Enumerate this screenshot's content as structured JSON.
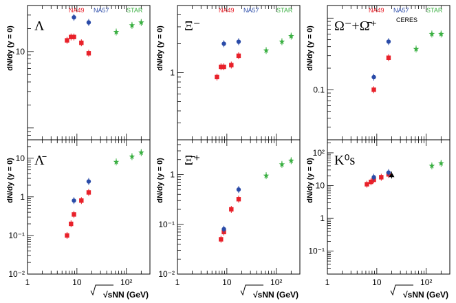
{
  "chart_data": [
    {
      "type": "scatter",
      "panel_label": "Λ",
      "ylabel": "dN/dy (y = 0)",
      "xscale": "log",
      "yscale": "log",
      "xlim": [
        1,
        300
      ],
      "ylim": [
        0.7,
        40
      ],
      "yticks": [
        {
          "v": 10,
          "label": "10"
        }
      ],
      "legend": [
        {
          "name": "NA49",
          "color": "#e8212a"
        },
        {
          "name": "NA57",
          "color": "#2a4ba8"
        },
        {
          "name": "STAR",
          "color": "#3bb043"
        }
      ],
      "series": [
        {
          "name": "NA49",
          "marker": "square",
          "color": "#e8212a",
          "points": [
            {
              "x": 6.3,
              "y": 14
            },
            {
              "x": 7.6,
              "y": 15.5
            },
            {
              "x": 8.7,
              "y": 15.5
            },
            {
              "x": 12.3,
              "y": 13
            },
            {
              "x": 17.3,
              "y": 9.5
            }
          ]
        },
        {
          "name": "NA57",
          "marker": "circle",
          "color": "#2a4ba8",
          "points": [
            {
              "x": 8.7,
              "y": 28
            },
            {
              "x": 17.3,
              "y": 24
            }
          ]
        },
        {
          "name": "STAR",
          "marker": "star",
          "color": "#3bb043",
          "points": [
            {
              "x": 62.4,
              "y": 18
            },
            {
              "x": 130,
              "y": 22
            },
            {
              "x": 200,
              "y": 24
            }
          ]
        }
      ]
    },
    {
      "type": "scatter",
      "panel_label": "Ξ⁻",
      "ylabel": "dN/dy (y = 0)",
      "xscale": "log",
      "yscale": "log",
      "xlim": [
        1,
        300
      ],
      "ylim": [
        0.2,
        5
      ],
      "yticks": [
        {
          "v": 1,
          "label": "1"
        }
      ],
      "legend": [
        {
          "name": "NA49",
          "color": "#e8212a"
        },
        {
          "name": "NA57",
          "color": "#2a4ba8"
        },
        {
          "name": "STAR",
          "color": "#3bb043"
        }
      ],
      "series": [
        {
          "name": "NA49",
          "marker": "square",
          "color": "#e8212a",
          "points": [
            {
              "x": 6.3,
              "y": 0.9
            },
            {
              "x": 7.6,
              "y": 1.15
            },
            {
              "x": 8.7,
              "y": 1.15
            },
            {
              "x": 12.3,
              "y": 1.2
            },
            {
              "x": 17.3,
              "y": 1.5
            }
          ]
        },
        {
          "name": "NA57",
          "marker": "circle",
          "color": "#2a4ba8",
          "points": [
            {
              "x": 8.7,
              "y": 2.0
            },
            {
              "x": 17.3,
              "y": 2.1
            }
          ]
        },
        {
          "name": "STAR",
          "marker": "star",
          "color": "#3bb043",
          "points": [
            {
              "x": 62.4,
              "y": 1.7
            },
            {
              "x": 130,
              "y": 2.1
            },
            {
              "x": 200,
              "y": 2.4
            }
          ]
        }
      ]
    },
    {
      "type": "scatter",
      "panel_label": "Ω⁻+Ω̄⁺",
      "ylabel": "dN/dy (y = 0)",
      "xscale": "log",
      "yscale": "log",
      "xlim": [
        1,
        300
      ],
      "ylim": [
        0.02,
        1.5
      ],
      "yticks": [
        {
          "v": 0.1,
          "label": "0.1"
        }
      ],
      "legend": [
        {
          "name": "NA49",
          "color": "#e8212a"
        },
        {
          "name": "NA57",
          "color": "#2a4ba8"
        },
        {
          "name": "STAR",
          "color": "#3bb043"
        },
        {
          "name": "CERES",
          "color": "#000000"
        }
      ],
      "series": [
        {
          "name": "NA49",
          "marker": "square",
          "color": "#e8212a",
          "points": [
            {
              "x": 8.7,
              "y": 0.1
            },
            {
              "x": 17.3,
              "y": 0.28
            }
          ]
        },
        {
          "name": "NA57",
          "marker": "circle",
          "color": "#2a4ba8",
          "points": [
            {
              "x": 8.7,
              "y": 0.15
            },
            {
              "x": 17.3,
              "y": 0.47
            }
          ]
        },
        {
          "name": "STAR",
          "marker": "star",
          "color": "#3bb043",
          "points": [
            {
              "x": 62.4,
              "y": 0.37
            },
            {
              "x": 130,
              "y": 0.6
            },
            {
              "x": 200,
              "y": 0.6
            }
          ]
        }
      ]
    },
    {
      "type": "scatter",
      "panel_label": "Λ̄",
      "ylabel": "dN/dy (y = 0)",
      "xlabel": "√sNN (GeV)",
      "xscale": "log",
      "yscale": "log",
      "xlim": [
        1,
        300
      ],
      "ylim": [
        0.01,
        30
      ],
      "yticks": [
        {
          "v": 0.01,
          "label": "10⁻²"
        },
        {
          "v": 0.1,
          "label": "10⁻¹"
        },
        {
          "v": 1,
          "label": "1"
        },
        {
          "v": 10,
          "label": "10"
        }
      ],
      "xticks": [
        {
          "v": 1,
          "label": "1"
        },
        {
          "v": 10,
          "label": "10"
        },
        {
          "v": 100,
          "label": "10²"
        }
      ],
      "series": [
        {
          "name": "NA49",
          "marker": "square",
          "color": "#e8212a",
          "points": [
            {
              "x": 6.3,
              "y": 0.1
            },
            {
              "x": 7.6,
              "y": 0.2
            },
            {
              "x": 8.7,
              "y": 0.35
            },
            {
              "x": 12.3,
              "y": 0.8
            },
            {
              "x": 17.3,
              "y": 1.3
            }
          ]
        },
        {
          "name": "NA57",
          "marker": "circle",
          "color": "#2a4ba8",
          "points": [
            {
              "x": 8.7,
              "y": 0.8
            },
            {
              "x": 17.3,
              "y": 2.5
            }
          ]
        },
        {
          "name": "STAR",
          "marker": "star",
          "color": "#3bb043",
          "points": [
            {
              "x": 62.4,
              "y": 8
            },
            {
              "x": 130,
              "y": 11
            },
            {
              "x": 200,
              "y": 14
            }
          ]
        }
      ]
    },
    {
      "type": "scatter",
      "panel_label": "Ξ̄⁺",
      "ylabel": "dN/dy (y = 0)",
      "xlabel": "√sNN (GeV)",
      "xscale": "log",
      "yscale": "log",
      "xlim": [
        1,
        300
      ],
      "ylim": [
        0.01,
        5
      ],
      "yticks": [
        {
          "v": 0.01,
          "label": "10⁻²"
        },
        {
          "v": 0.1,
          "label": "10⁻¹"
        },
        {
          "v": 1,
          "label": "1"
        }
      ],
      "xticks": [
        {
          "v": 1,
          "label": "1"
        },
        {
          "v": 10,
          "label": "10"
        },
        {
          "v": 100,
          "label": "10²"
        }
      ],
      "series": [
        {
          "name": "NA49",
          "marker": "square",
          "color": "#e8212a",
          "points": [
            {
              "x": 7.6,
              "y": 0.05
            },
            {
              "x": 8.7,
              "y": 0.07
            },
            {
              "x": 12.3,
              "y": 0.2
            },
            {
              "x": 17.3,
              "y": 0.32
            }
          ]
        },
        {
          "name": "NA57",
          "marker": "circle",
          "color": "#2a4ba8",
          "points": [
            {
              "x": 8.7,
              "y": 0.08
            },
            {
              "x": 17.3,
              "y": 0.5
            }
          ]
        },
        {
          "name": "STAR",
          "marker": "star",
          "color": "#3bb043",
          "points": [
            {
              "x": 62.4,
              "y": 0.95
            },
            {
              "x": 130,
              "y": 1.6
            },
            {
              "x": 200,
              "y": 1.9
            }
          ]
        }
      ]
    },
    {
      "type": "scatter",
      "panel_label": "K⁰s",
      "ylabel": "dN/dy (y = 0)",
      "xlabel": "√sNN (GeV)",
      "xscale": "log",
      "yscale": "log",
      "xlim": [
        1,
        300
      ],
      "ylim": [
        0.02,
        250
      ],
      "yticks": [
        {
          "v": 0.1,
          "label": "10⁻¹"
        },
        {
          "v": 1,
          "label": "1"
        },
        {
          "v": 10,
          "label": "10"
        },
        {
          "v": 100,
          "label": "10²"
        }
      ],
      "xticks": [
        {
          "v": 1,
          "label": "1"
        },
        {
          "v": 10,
          "label": "10"
        },
        {
          "v": 100,
          "label": "10²"
        }
      ],
      "series": [
        {
          "name": "NA49",
          "marker": "square",
          "color": "#e8212a",
          "points": [
            {
              "x": 6.3,
              "y": 11
            },
            {
              "x": 7.6,
              "y": 13
            },
            {
              "x": 8.7,
              "y": 15
            },
            {
              "x": 12.3,
              "y": 18
            },
            {
              "x": 17.3,
              "y": 22
            }
          ]
        },
        {
          "name": "NA57",
          "marker": "circle",
          "color": "#2a4ba8",
          "points": [
            {
              "x": 8.7,
              "y": 18
            },
            {
              "x": 17.3,
              "y": 25
            }
          ]
        },
        {
          "name": "CERES",
          "marker": "triangle",
          "color": "#000000",
          "points": [
            {
              "x": 20,
              "y": 21
            }
          ]
        },
        {
          "name": "STAR",
          "marker": "star",
          "color": "#3bb043",
          "points": [
            {
              "x": 130,
              "y": 40
            },
            {
              "x": 200,
              "y": 48
            }
          ]
        }
      ]
    }
  ]
}
